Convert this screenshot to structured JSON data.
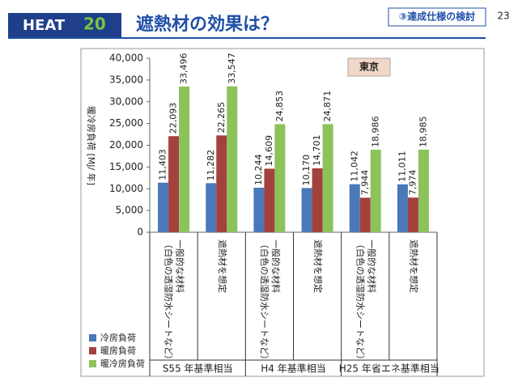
{
  "header": {
    "badge": "HEAT",
    "badge_number": "20",
    "title": "遮熱材の効果は？",
    "section": "③達成仕様の検討",
    "page": "23"
  },
  "chart_data": {
    "type": "bar",
    "y_label": "暖冷房負荷 [MJ/ 年]",
    "annotation": "東京",
    "categories": [
      [
        "一般的な材料",
        "（白色の透湿防水シートなど）"
      ],
      [
        "遮熱材を想定"
      ],
      [
        "一般的な材料",
        "（白色の透湿防水シートなど）"
      ],
      [
        "遮熱材を想定"
      ],
      [
        "一般的な材料",
        "（白色の透湿防水シートなど）"
      ],
      [
        "遮熱材を想定"
      ]
    ],
    "groups": [
      "S55 年基準相当",
      "H4 年基準相当",
      "H25 年省エネ基準相当"
    ],
    "series": [
      {
        "name": "冷房負荷",
        "color": "#4a78b8",
        "values": [
          11403,
          11282,
          10244,
          10170,
          11042,
          11011
        ],
        "value_labels": [
          "11,403",
          "11,282",
          "10,244",
          "10,170",
          "11,042",
          "11,011"
        ]
      },
      {
        "name": "暖房負荷",
        "color": "#a3423c",
        "values": [
          22093,
          22265,
          14609,
          14701,
          7944,
          7974
        ],
        "value_labels": [
          "22,093",
          "22,265",
          "14,609",
          "14,701",
          "7,944",
          "7,974"
        ]
      },
      {
        "name": "暖冷房負荷",
        "color": "#8cc25a",
        "values": [
          33496,
          33547,
          24853,
          24871,
          18986,
          18985
        ],
        "value_labels": [
          "33,496",
          "33,547",
          "24,853",
          "24,871",
          "18,986",
          "18,985"
        ]
      }
    ],
    "ylim": [
      0,
      40000
    ],
    "yticks": [
      0,
      {
        "value": 5000,
        "label": "5,000"
      },
      {
        "value": 10000,
        "label": "10,000"
      },
      {
        "value": 15000,
        "label": "15,000"
      },
      {
        "value": 20000,
        "label": "20,000"
      },
      {
        "value": 25000,
        "label": "25,000"
      },
      {
        "value": 30000,
        "label": "30,000"
      },
      {
        "value": 35000,
        "label": "35,000"
      },
      {
        "value": 40000,
        "label": "40,000"
      }
    ],
    "grid": false
  }
}
